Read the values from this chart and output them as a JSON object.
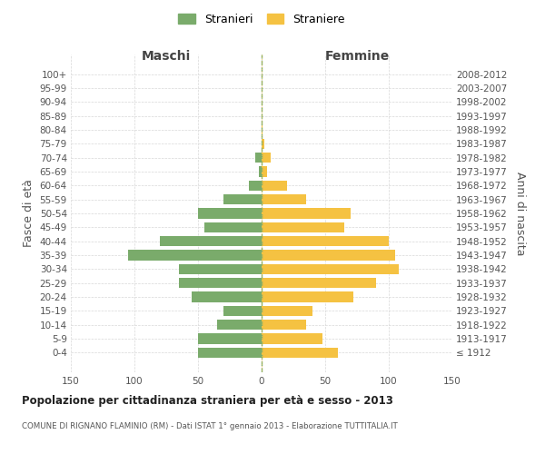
{
  "age_groups": [
    "100+",
    "95-99",
    "90-94",
    "85-89",
    "80-84",
    "75-79",
    "70-74",
    "65-69",
    "60-64",
    "55-59",
    "50-54",
    "45-49",
    "40-44",
    "35-39",
    "30-34",
    "25-29",
    "20-24",
    "15-19",
    "10-14",
    "5-9",
    "0-4"
  ],
  "birth_years": [
    "≤ 1912",
    "1913-1917",
    "1918-1922",
    "1923-1927",
    "1928-1932",
    "1933-1937",
    "1938-1942",
    "1943-1947",
    "1948-1952",
    "1953-1957",
    "1958-1962",
    "1963-1967",
    "1968-1972",
    "1973-1977",
    "1978-1982",
    "1983-1987",
    "1988-1992",
    "1993-1997",
    "1998-2002",
    "2003-2007",
    "2008-2012"
  ],
  "males": [
    0,
    0,
    0,
    0,
    0,
    0,
    5,
    2,
    10,
    30,
    50,
    45,
    80,
    105,
    65,
    65,
    55,
    30,
    35,
    50,
    50
  ],
  "females": [
    0,
    0,
    0,
    0,
    1,
    2,
    7,
    4,
    20,
    35,
    70,
    65,
    100,
    105,
    108,
    90,
    72,
    40,
    35,
    48,
    60
  ],
  "male_color": "#7aab6b",
  "female_color": "#f5c242",
  "title": "Popolazione per cittadinanza straniera per età e sesso - 2013",
  "subtitle": "COMUNE DI RIGNANO FLAMINIO (RM) - Dati ISTAT 1° gennaio 2013 - Elaborazione TUTTITALIA.IT",
  "ylabel_left": "Fasce di età",
  "ylabel_right": "Anni di nascita",
  "xlabel_left": "Maschi",
  "xlabel_right": "Femmine",
  "legend_male": "Stranieri",
  "legend_female": "Straniere",
  "xlim": 150,
  "background_color": "#ffffff",
  "grid_color": "#d8d8d8",
  "dashed_line_color_green": "#7aab6b",
  "dashed_line_color_gold": "#f5c242"
}
